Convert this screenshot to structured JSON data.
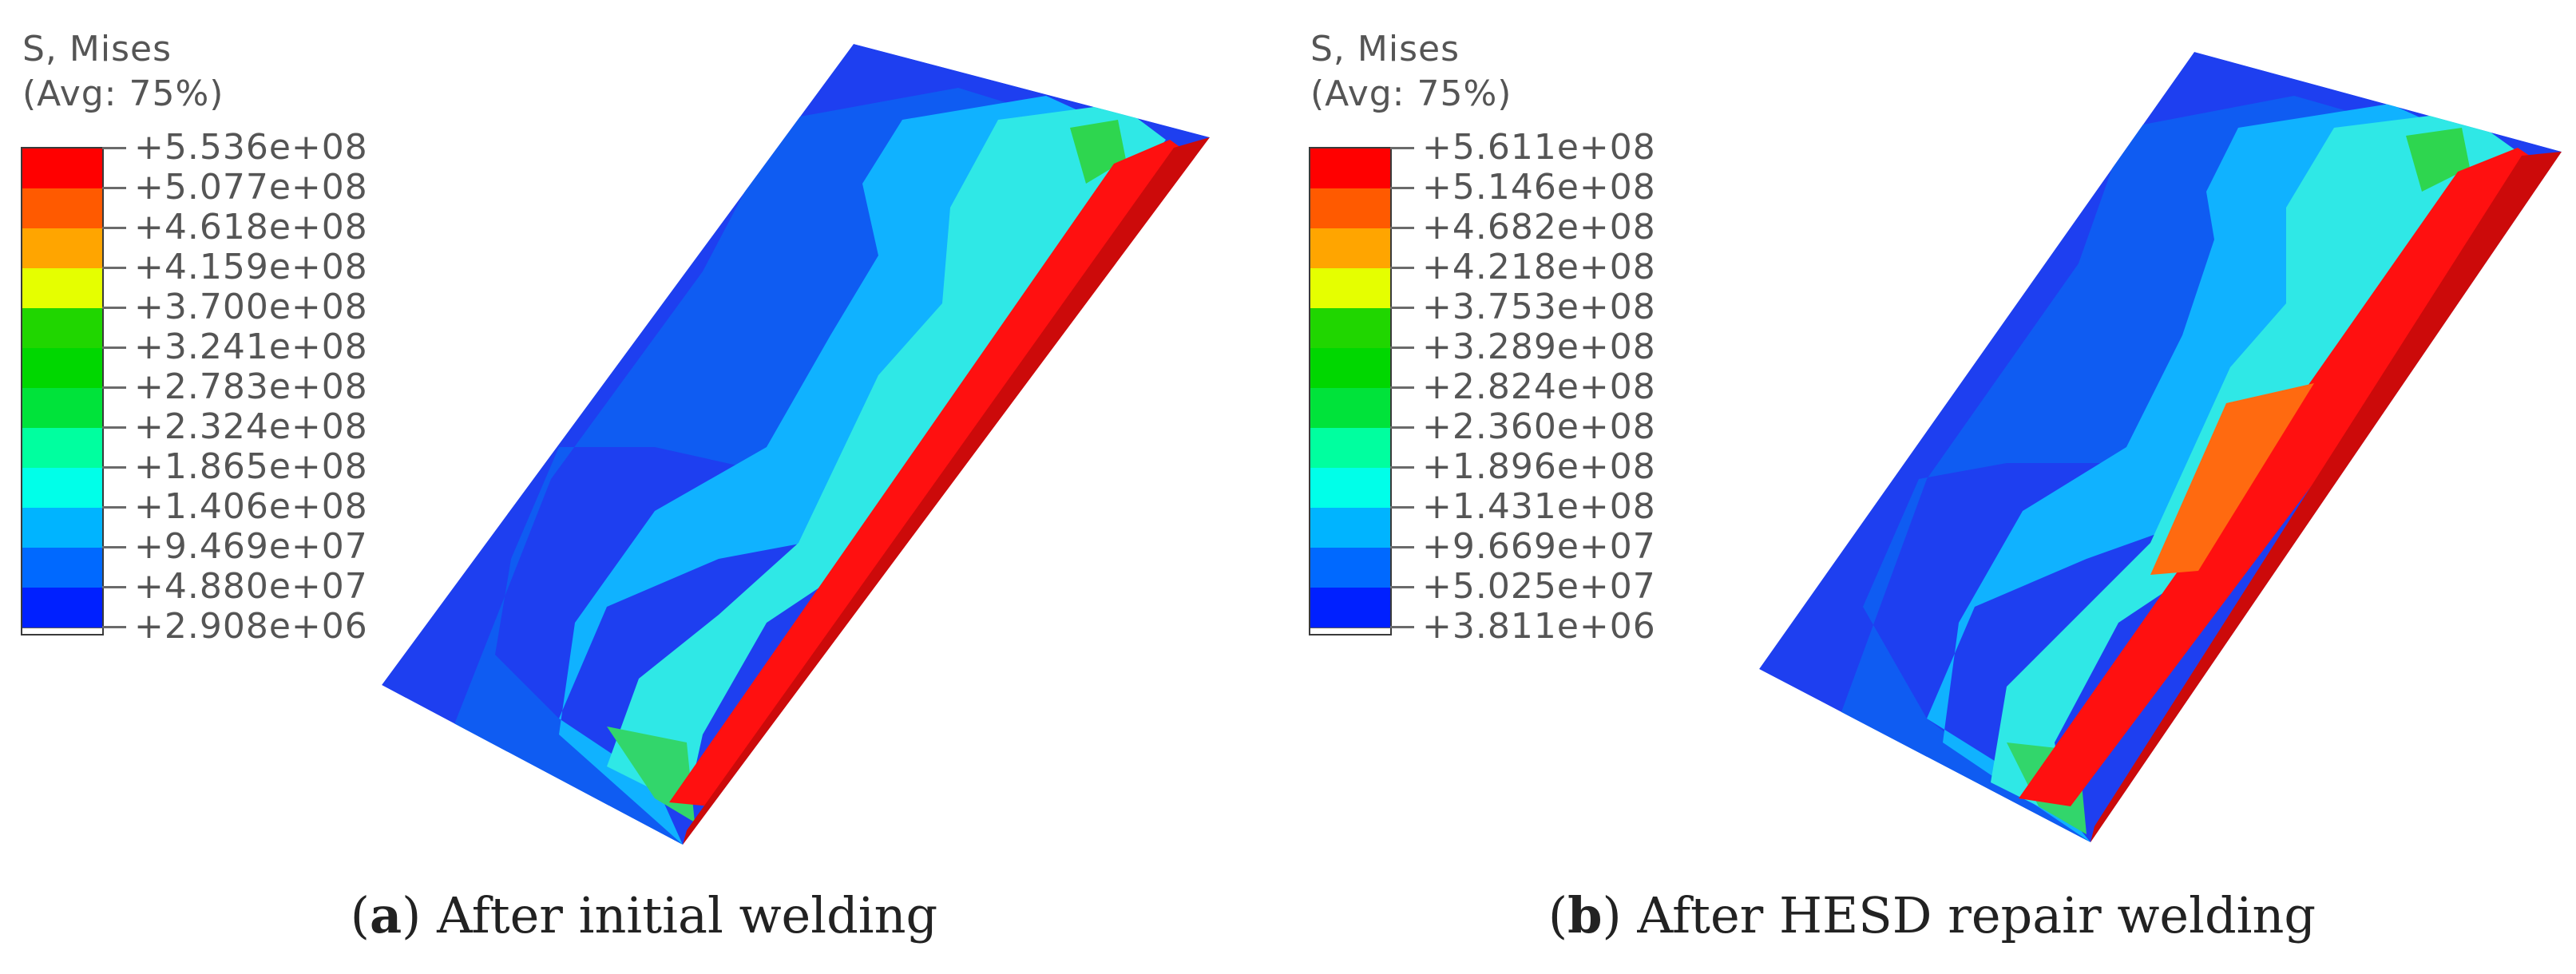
{
  "panels": [
    {
      "id": "a",
      "legend_title": "S, Mises",
      "legend_subtitle": "(Avg: 75%)",
      "legend_values": [
        "+5.536e+08",
        "+5.077e+08",
        "+4.618e+08",
        "+4.159e+08",
        "+3.700e+08",
        "+3.241e+08",
        "+2.783e+08",
        "+2.324e+08",
        "+1.865e+08",
        "+1.406e+08",
        "+9.469e+07",
        "+4.880e+07",
        "+2.908e+06"
      ],
      "caption_letter": "a",
      "caption_text": "After initial welding"
    },
    {
      "id": "b",
      "legend_title": "S, Mises",
      "legend_subtitle": "(Avg: 75%)",
      "legend_values": [
        "+5.611e+08",
        "+5.146e+08",
        "+4.682e+08",
        "+4.218e+08",
        "+3.753e+08",
        "+3.289e+08",
        "+2.824e+08",
        "+2.360e+08",
        "+1.896e+08",
        "+1.431e+08",
        "+9.669e+07",
        "+5.025e+07",
        "+3.811e+06"
      ],
      "caption_letter": "b",
      "caption_text": "After HESD repair welding"
    }
  ],
  "legend_colors": [
    "#ff0000",
    "#ff5a00",
    "#ffa500",
    "#e5ff00",
    "#20d600",
    "#00d700",
    "#00e33a",
    "#00ff9f",
    "#00ffe9",
    "#00b4ff",
    "#0069ff",
    "#0020ff"
  ]
}
